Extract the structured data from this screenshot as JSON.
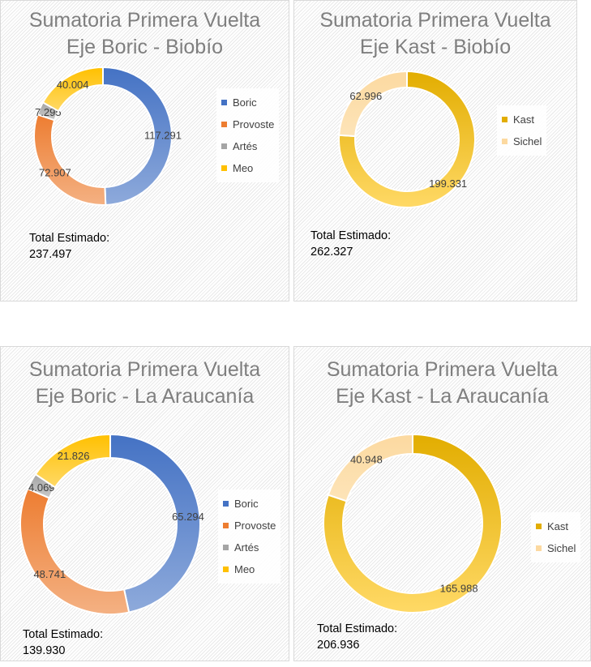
{
  "chart_data": [
    {
      "type": "pie",
      "title": [
        "Sumatoria Primera Vuelta",
        "Eje Boric - Biobío"
      ],
      "categories": [
        "Boric",
        "Provoste",
        "Artés",
        "Meo"
      ],
      "values": [
        117291,
        72907,
        7295,
        40004
      ],
      "labels": [
        "117.291",
        "72.907",
        "7.295",
        "40.004"
      ],
      "colors": [
        "#4472c4",
        "#ed7d31",
        "#a5a5a5",
        "#ffc000"
      ],
      "colors_light": [
        "#8eaadb",
        "#f4b183",
        "#c9c9c9",
        "#ffd966"
      ],
      "total_label": "Total Estimado:",
      "total": "237.497",
      "legend": "right"
    },
    {
      "type": "pie",
      "title": [
        "Sumatoria Primera Vuelta",
        "Eje Kast - Biobío"
      ],
      "categories": [
        "Kast",
        "Sichel"
      ],
      "values": [
        199331,
        62996
      ],
      "labels": [
        "199.331",
        "62.996"
      ],
      "colors": [
        "#e2ad00",
        "#fcd9a0"
      ],
      "colors_light": [
        "#ffd966",
        "#fde4b8"
      ],
      "total_label": "Total Estimado:",
      "total": "262.327",
      "legend": "right"
    },
    {
      "type": "pie",
      "title": [
        "Sumatoria Primera Vuelta",
        "Eje Boric - La Araucanía"
      ],
      "categories": [
        "Boric",
        "Provoste",
        "Artés",
        "Meo"
      ],
      "values": [
        65294,
        48741,
        4069,
        21826
      ],
      "labels": [
        "65.294",
        "48.741",
        "4.069",
        "21.826"
      ],
      "colors": [
        "#4472c4",
        "#ed7d31",
        "#a5a5a5",
        "#ffc000"
      ],
      "colors_light": [
        "#8eaadb",
        "#f4b183",
        "#c9c9c9",
        "#ffd966"
      ],
      "total_label": "Total Estimado:",
      "total": "139.930",
      "legend": "right"
    },
    {
      "type": "pie",
      "title": [
        "Sumatoria Primera Vuelta",
        "Eje Kast - La Araucanía"
      ],
      "categories": [
        "Kast",
        "Sichel"
      ],
      "values": [
        165988,
        40948
      ],
      "labels": [
        "165.988",
        "40.948"
      ],
      "colors": [
        "#e2ad00",
        "#fcd9a0"
      ],
      "colors_light": [
        "#ffd966",
        "#fde4b8"
      ],
      "total_label": "Total Estimado:",
      "total": "206.936",
      "legend": "right"
    }
  ]
}
